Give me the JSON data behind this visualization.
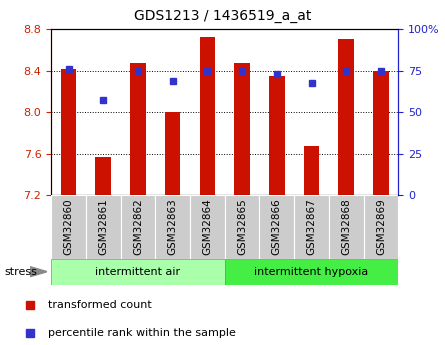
{
  "title": "GDS1213 / 1436519_a_at",
  "samples": [
    "GSM32860",
    "GSM32861",
    "GSM32862",
    "GSM32863",
    "GSM32864",
    "GSM32865",
    "GSM32866",
    "GSM32867",
    "GSM32868",
    "GSM32869"
  ],
  "bar_values": [
    8.42,
    7.57,
    8.47,
    8.0,
    8.73,
    8.47,
    8.35,
    7.67,
    8.71,
    8.4
  ],
  "percentile_values": [
    8.42,
    8.12,
    8.4,
    8.3,
    8.4,
    8.4,
    8.37,
    8.28,
    8.4,
    8.4
  ],
  "ylim": [
    7.2,
    8.8
  ],
  "y2lim": [
    0,
    100
  ],
  "yticks": [
    7.2,
    7.6,
    8.0,
    8.4,
    8.8
  ],
  "y2ticks": [
    0,
    25,
    50,
    75,
    100
  ],
  "bar_color": "#CC1100",
  "dot_color": "#3333CC",
  "bar_bottom": 7.2,
  "group1_label": "intermittent air",
  "group2_label": "intermittent hypoxia",
  "group1_indices": [
    0,
    1,
    2,
    3,
    4
  ],
  "group2_indices": [
    5,
    6,
    7,
    8,
    9
  ],
  "stress_label": "stress",
  "legend_bar_label": "transformed count",
  "legend_dot_label": "percentile rank within the sample",
  "group1_color": "#AAFFAA",
  "group2_color": "#44EE44",
  "tick_label_color_left": "#CC2200",
  "tick_label_color_right": "#2222CC",
  "sample_bg": "#CCCCCC",
  "bar_width": 0.45
}
